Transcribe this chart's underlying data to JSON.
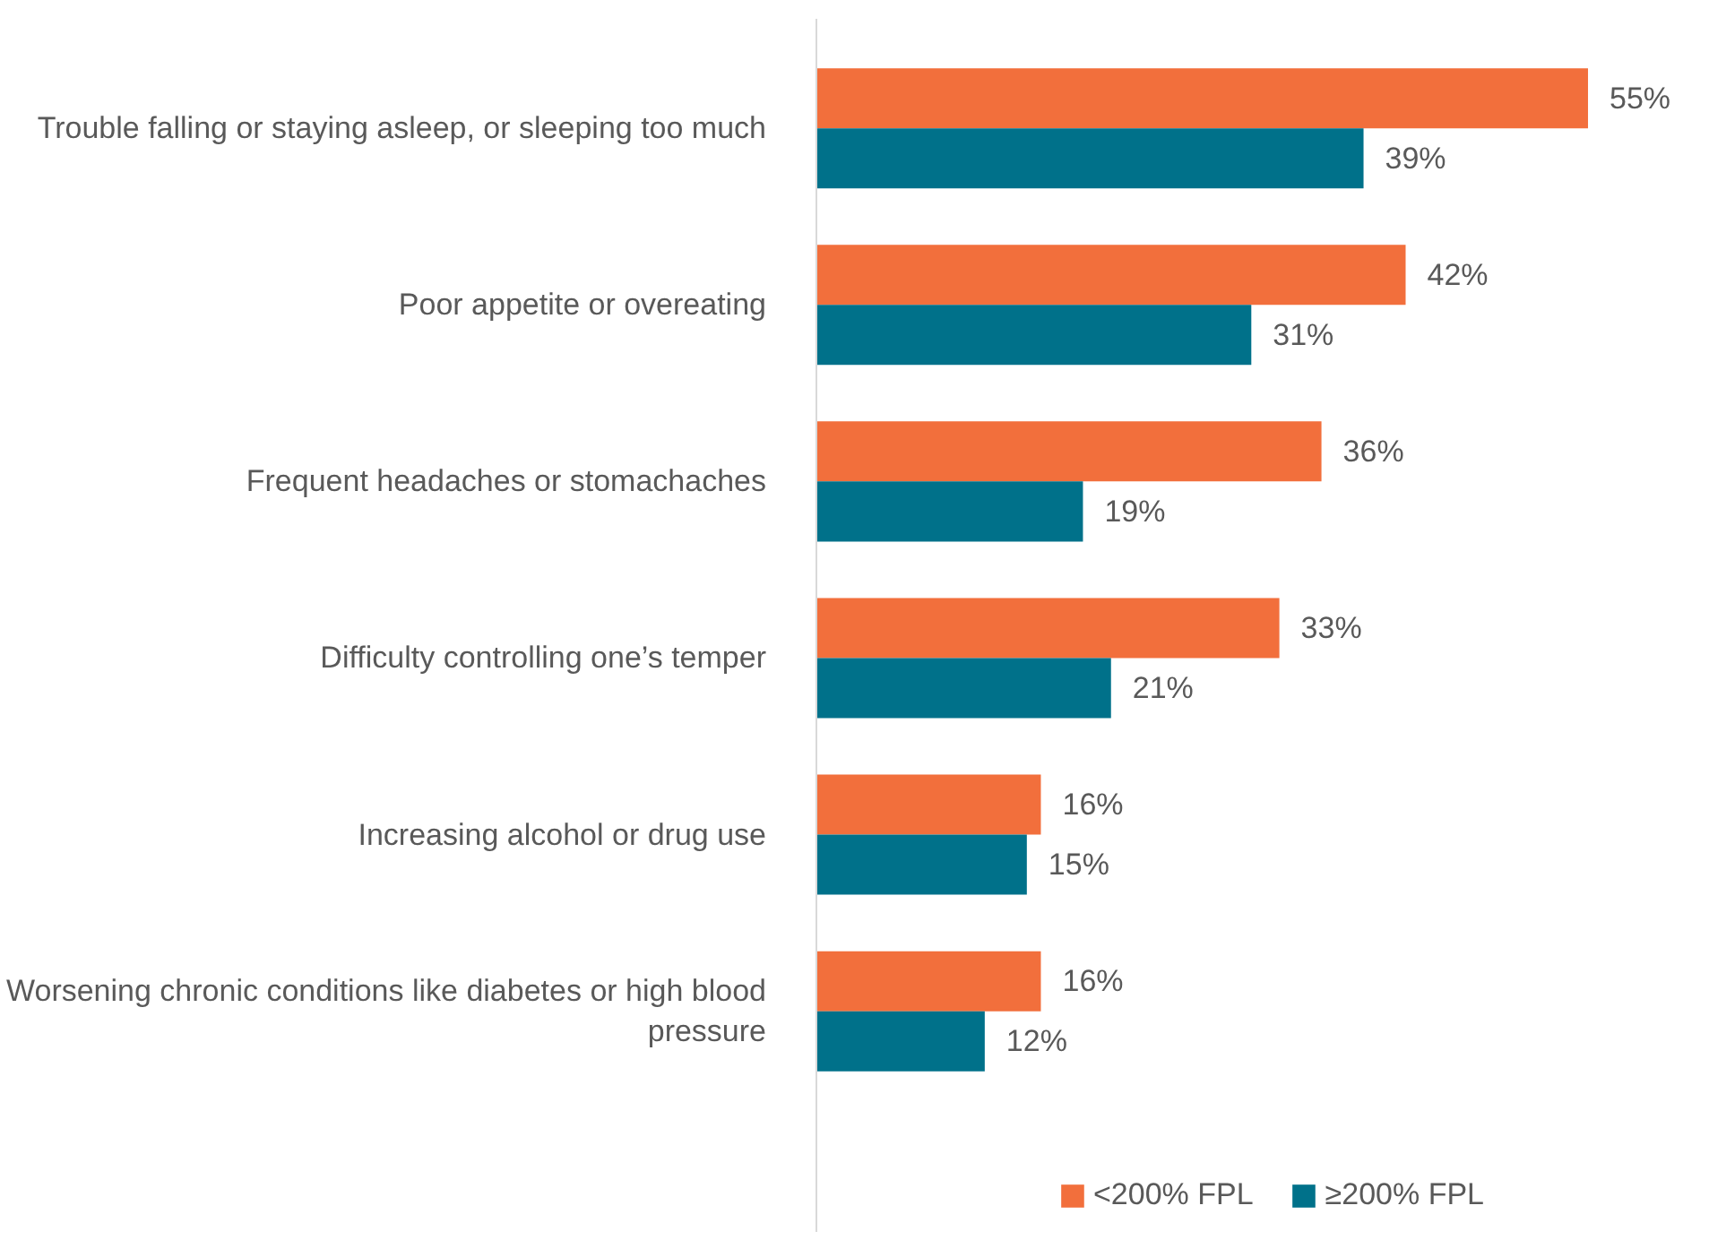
{
  "chart_data": {
    "type": "bar",
    "orientation": "horizontal",
    "categories": [
      "Trouble falling or staying asleep, or sleeping too much",
      "Poor appetite or overeating",
      "Frequent headaches or stomachaches",
      "Difficulty controlling one’s temper",
      "Increasing alcohol or drug use",
      "Worsening chronic conditions like diabetes or high blood pressure"
    ],
    "series": [
      {
        "name": "<200% FPL",
        "color": "#f26f3c",
        "values": [
          55,
          42,
          36,
          33,
          16,
          16
        ],
        "value_labels": [
          "55%",
          "42%",
          "36%",
          "33%",
          "16%",
          "16%"
        ]
      },
      {
        "name": "≥200% FPL",
        "color": "#00718a",
        "values": [
          39,
          31,
          19,
          21,
          15,
          12
        ],
        "value_labels": [
          "39%",
          "31%",
          "19%",
          "21%",
          "15%",
          "12%"
        ]
      }
    ],
    "legend": "bottom",
    "grid": false
  }
}
